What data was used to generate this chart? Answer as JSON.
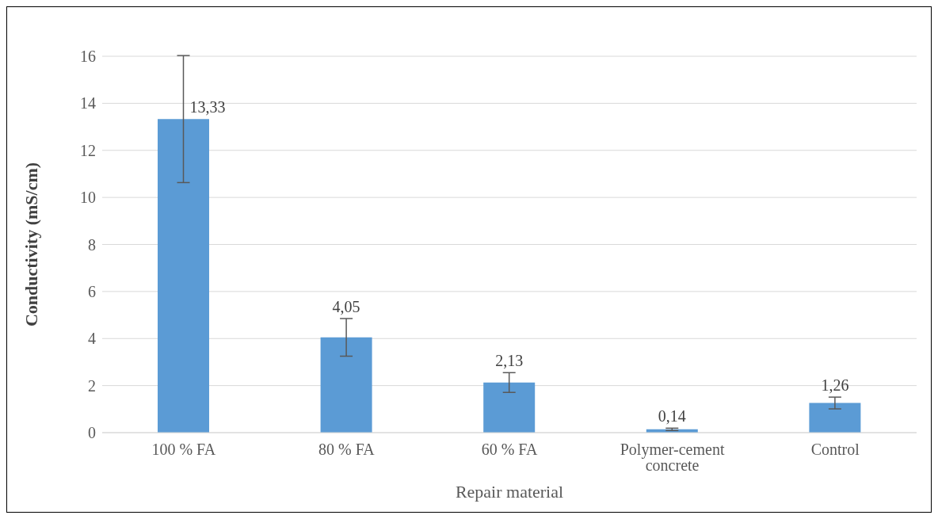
{
  "chart_data": {
    "type": "bar",
    "xlabel": "Repair material",
    "ylabel": "Conductivity (mS/cm)",
    "categories": [
      "100 % FA",
      "80 % FA",
      "60 % FA",
      "Polymer-cement concrete",
      "Control"
    ],
    "values": [
      13.33,
      4.05,
      2.13,
      0.14,
      1.26
    ],
    "errors": [
      2.7,
      0.8,
      0.42,
      0.05,
      0.25
    ],
    "value_labels": [
      "13,33",
      "4,05",
      "2,13",
      "0,14",
      "1,26"
    ],
    "color": "#5b9bd5",
    "ylim": [
      0,
      16
    ],
    "yticks": [
      0,
      2,
      4,
      6,
      8,
      10,
      12,
      14,
      16
    ],
    "grid": "y"
  }
}
